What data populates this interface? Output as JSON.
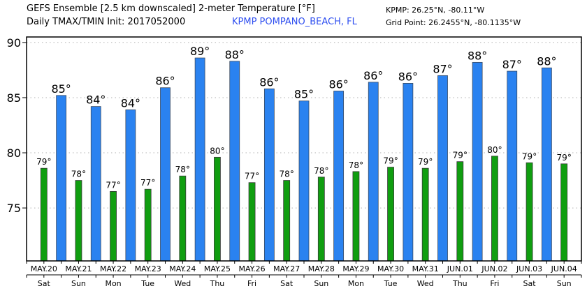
{
  "header": {
    "title": "GEFS Ensemble [2.5 km downscaled] 2-meter Temperature [°F]",
    "subtitle": "Daily TMAX/TMIN Init: 2017052000",
    "station": "KPMP POMPANO_BEACH, FL",
    "station_coords": "KPMP: 26.25°N, -80.11°W",
    "grid_point": "Grid Point: 26.2455°N, -80.1135°W"
  },
  "colors": {
    "tmax": "#2a82f0",
    "tmin": "#109e10",
    "station_text": "#2f4ff0",
    "grid": "#b0b0b0"
  },
  "chart_data": {
    "type": "bar",
    "title": "GEFS Ensemble [2.5 km downscaled] 2-meter Temperature [°F]",
    "xlabel": "",
    "ylabel": "",
    "ylim": [
      70.2,
      90.5
    ],
    "yticks": [
      75,
      80,
      85,
      90
    ],
    "grid": true,
    "categories": [
      "MAY.20",
      "MAY.21",
      "MAY.22",
      "MAY.23",
      "MAY.24",
      "MAY.25",
      "MAY.26",
      "MAY.27",
      "MAY.28",
      "MAY.29",
      "MAY.30",
      "MAY.31",
      "JUN.01",
      "JUN.02",
      "JUN.03",
      "JUN.04"
    ],
    "weekdays": [
      "Sat",
      "Sun",
      "Mon",
      "Tue",
      "Wed",
      "Thu",
      "Fri",
      "Sat",
      "Sun",
      "Mon",
      "Tue",
      "Wed",
      "Thu",
      "Fri",
      "Sat",
      "Sun"
    ],
    "series": [
      {
        "name": "TMAX",
        "values": [
          null,
          85.2,
          84.2,
          83.9,
          85.9,
          88.6,
          88.3,
          85.8,
          84.7,
          85.6,
          86.4,
          86.3,
          87.0,
          88.2,
          87.4,
          87.7
        ],
        "labels": [
          null,
          "85°",
          "84°",
          "84°",
          "86°",
          "89°",
          "88°",
          "86°",
          "85°",
          "86°",
          "86°",
          "86°",
          "87°",
          "88°",
          "87°",
          "88°"
        ]
      },
      {
        "name": "TMIN",
        "values": [
          78.6,
          77.5,
          76.5,
          76.7,
          77.9,
          79.6,
          77.3,
          77.5,
          77.8,
          78.3,
          78.7,
          78.6,
          79.2,
          79.7,
          79.1,
          79.0
        ],
        "labels": [
          "79°",
          "78°",
          "77°",
          "77°",
          "78°",
          "80°",
          "77°",
          "78°",
          "78°",
          "78°",
          "79°",
          "79°",
          "79°",
          "80°",
          "79°",
          "79°"
        ]
      }
    ]
  }
}
